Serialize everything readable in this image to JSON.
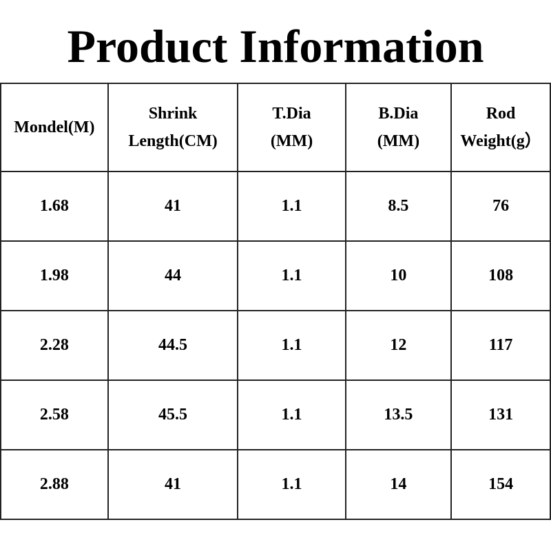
{
  "header": {
    "title": "Product Information"
  },
  "table": {
    "columns": [
      [
        "Mondel(M)"
      ],
      [
        "Shrink",
        "Length(CM)"
      ],
      [
        "T.Dia",
        "(MM)"
      ],
      [
        "B.Dia",
        "(MM)"
      ],
      [
        "Rod",
        "Weight(g）"
      ]
    ],
    "rows": [
      [
        "1.68",
        "41",
        "1.1",
        "8.5",
        "76"
      ],
      [
        "1.98",
        "44",
        "1.1",
        "10",
        "108"
      ],
      [
        "2.28",
        "44.5",
        "1.1",
        "12",
        "117"
      ],
      [
        "2.58",
        "45.5",
        "1.1",
        "13.5",
        "131"
      ],
      [
        "2.88",
        "41",
        "1.1",
        "14",
        "154"
      ]
    ]
  }
}
